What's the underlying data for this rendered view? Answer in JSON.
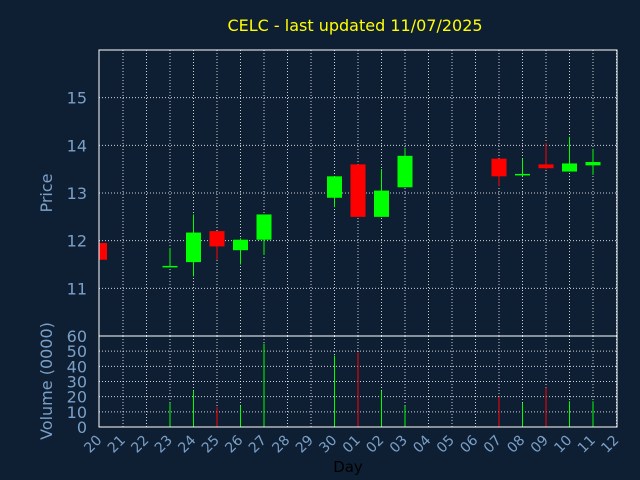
{
  "chart_data": {
    "type": "candlestick",
    "title": "CELC - last updated 11/07/2025",
    "xlabel": "Day",
    "colors": {
      "background": "#0f1f33",
      "frame": "#ffffff",
      "grid": "#ffffff",
      "up": "#00ff00",
      "down": "#ff0000",
      "title": "#ffff00",
      "axis_text": "#7aa0c8"
    },
    "categories": [
      "20",
      "21",
      "22",
      "23",
      "24",
      "25",
      "26",
      "27",
      "28",
      "29",
      "30",
      "01",
      "02",
      "03",
      "04",
      "05",
      "06",
      "07",
      "08",
      "09",
      "10",
      "11",
      "12"
    ],
    "price_panel": {
      "ylabel": "Price",
      "ylim": [
        10,
        16
      ],
      "yticks": [
        11,
        12,
        13,
        14,
        15
      ]
    },
    "volume_panel": {
      "ylabel": "Volume (0000)",
      "ylim": [
        0,
        60
      ],
      "yticks": [
        0,
        10,
        20,
        30,
        40,
        50,
        60
      ]
    },
    "candles": [
      {
        "day": "20",
        "open": 11.95,
        "high": 11.95,
        "low": 11.6,
        "close": 11.6,
        "volume": 0
      },
      {
        "day": "23",
        "open": 11.47,
        "high": 11.85,
        "low": 11.45,
        "close": 11.47,
        "volume": 16
      },
      {
        "day": "24",
        "open": 11.55,
        "high": 12.55,
        "low": 11.25,
        "close": 12.17,
        "volume": 24
      },
      {
        "day": "25",
        "open": 12.2,
        "high": 12.2,
        "low": 11.6,
        "close": 11.88,
        "volume": 13
      },
      {
        "day": "26",
        "open": 11.8,
        "high": 12.05,
        "low": 11.5,
        "close": 12.02,
        "volume": 14
      },
      {
        "day": "27",
        "open": 12.02,
        "high": 12.55,
        "low": 11.7,
        "close": 12.55,
        "volume": 55
      },
      {
        "day": "30",
        "open": 12.9,
        "high": 13.35,
        "low": 12.7,
        "close": 13.35,
        "volume": 47
      },
      {
        "day": "01",
        "open": 13.6,
        "high": 13.6,
        "low": 12.5,
        "close": 12.5,
        "volume": 49
      },
      {
        "day": "02",
        "open": 12.5,
        "high": 13.5,
        "low": 12.5,
        "close": 13.05,
        "volume": 24
      },
      {
        "day": "03",
        "open": 13.12,
        "high": 13.95,
        "low": 13.12,
        "close": 13.78,
        "volume": 14
      },
      {
        "day": "07",
        "open": 13.72,
        "high": 13.72,
        "low": 13.15,
        "close": 13.35,
        "volume": 20
      },
      {
        "day": "08",
        "open": 13.38,
        "high": 13.72,
        "low": 13.35,
        "close": 13.4,
        "volume": 16
      },
      {
        "day": "09",
        "open": 13.6,
        "high": 14.05,
        "low": 13.5,
        "close": 13.52,
        "volume": 26
      },
      {
        "day": "10",
        "open": 13.45,
        "high": 14.18,
        "low": 13.45,
        "close": 13.62,
        "volume": 17
      },
      {
        "day": "11",
        "open": 13.58,
        "high": 13.92,
        "low": 13.38,
        "close": 13.65,
        "volume": 17
      }
    ]
  }
}
